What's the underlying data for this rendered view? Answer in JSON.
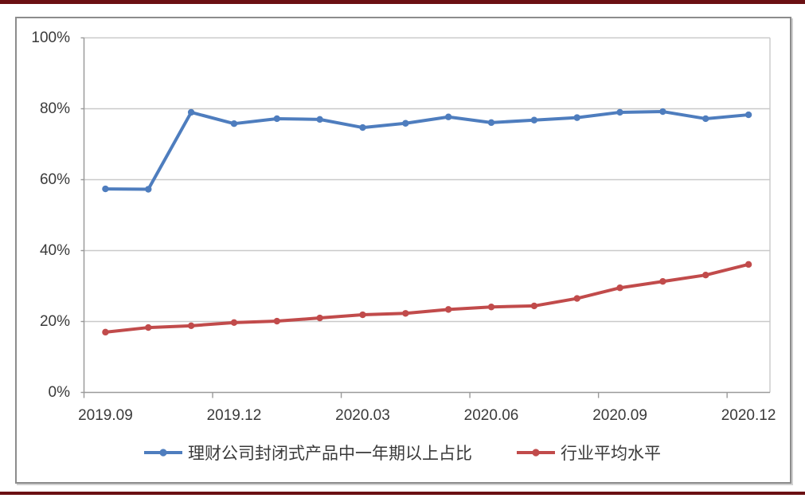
{
  "page_rules": {
    "color": "#6B1013"
  },
  "chart_data": {
    "type": "line",
    "title": "",
    "x": [
      "2019.09",
      "2019.10",
      "2019.11",
      "2019.12",
      "2020.01",
      "2020.02",
      "2020.03",
      "2020.04",
      "2020.05",
      "2020.06",
      "2020.07",
      "2020.08",
      "2020.09",
      "2020.10",
      "2020.11",
      "2020.12"
    ],
    "x_axis_tick_labels": [
      "2019.09",
      "2019.12",
      "2020.03",
      "2020.06",
      "2020.09",
      "2020.12"
    ],
    "x_tick_every": 3,
    "y_tick_labels": [
      "0%",
      "20%",
      "40%",
      "60%",
      "80%",
      "100%"
    ],
    "y_tick_values": [
      0,
      20,
      40,
      60,
      80,
      100
    ],
    "ylim": [
      0,
      100
    ],
    "grid": true,
    "legend_position": "bottom",
    "series": [
      {
        "name": "理财公司封闭式产品中一年期以上占比",
        "color": "#4E7DBE",
        "marker": "circle",
        "values": [
          57.4,
          57.3,
          79.0,
          75.8,
          77.2,
          77.0,
          74.7,
          75.9,
          77.7,
          76.1,
          76.8,
          77.5,
          79.0,
          79.2,
          77.2,
          78.3
        ]
      },
      {
        "name": "行业平均水平",
        "color": "#C14B4B",
        "marker": "circle",
        "values": [
          17.0,
          18.3,
          18.8,
          19.7,
          20.1,
          21.0,
          21.9,
          22.3,
          23.4,
          24.1,
          24.4,
          26.5,
          29.5,
          31.3,
          33.1,
          36.1
        ]
      }
    ],
    "axis_color": "#9a9a9a",
    "gridline_color": "#c9c9c9",
    "tick_label_color": "#3a3a3a"
  }
}
